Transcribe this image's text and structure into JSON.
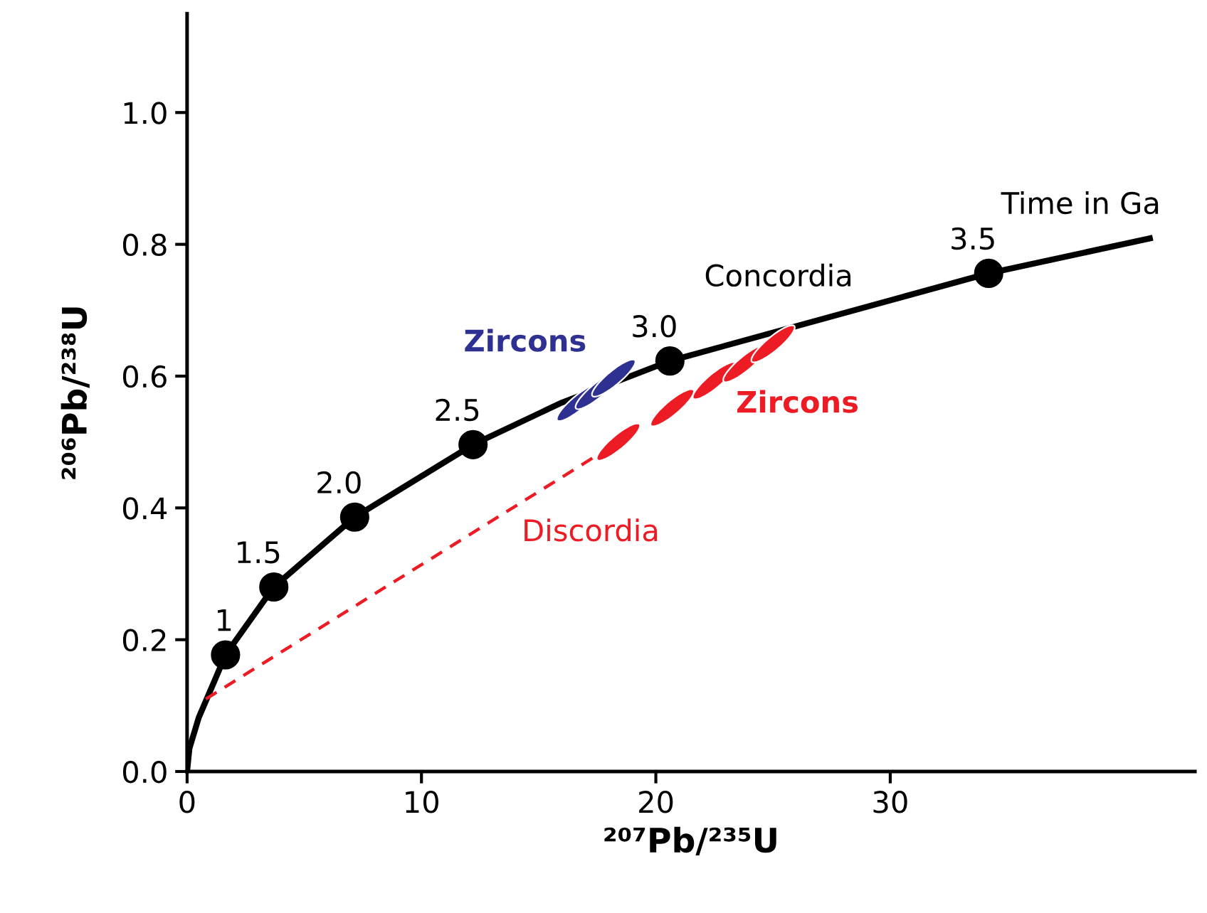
{
  "chart_data": {
    "type": "line",
    "xlabel": "²⁰⁷Pb/²³⁵U",
    "ylabel": "²⁰⁶Pb/²³⁸U",
    "xlim": [
      0,
      43
    ],
    "ylim": [
      0,
      1.15
    ],
    "xticks": [
      0,
      10,
      20,
      30
    ],
    "yticks": [
      {
        "value": 0,
        "label": "0.0"
      },
      {
        "value": 0.2,
        "label": "0.2"
      },
      {
        "value": 0.4,
        "label": "0.4"
      },
      {
        "value": 0.6,
        "label": "0.6"
      },
      {
        "value": 0.8,
        "label": "0.8"
      },
      {
        "value": 1.0,
        "label": "1.0"
      }
    ],
    "grid": false,
    "legend": false,
    "series": [
      {
        "name": "Concordia",
        "color": "#000000",
        "line_style": "solid",
        "x": [
          0,
          0.1,
          0.5,
          1.2,
          1.64,
          3.7,
          7.15,
          12.2,
          16,
          20.6,
          25.6,
          30.1,
          34.2,
          41.2
        ],
        "values": [
          0,
          0.035,
          0.082,
          0.14,
          0.177,
          0.28,
          0.386,
          0.496,
          0.56,
          0.623,
          0.672,
          0.716,
          0.756,
          0.81
        ]
      },
      {
        "name": "Discordia",
        "color": "#ed1c24",
        "line_style": "dashed",
        "x": [
          0.8,
          18.4
        ],
        "values": [
          0.11,
          0.5
        ]
      },
      {
        "name": "Zircons",
        "type": "scatter",
        "color": "#ed1c24",
        "x": [
          18.4,
          20.7,
          22.5,
          23.8,
          25.0
        ],
        "values": [
          0.5,
          0.552,
          0.593,
          0.619,
          0.649
        ]
      },
      {
        "name": "Zircons",
        "type": "scatter",
        "color": "#2e3192",
        "x": [
          16.7,
          17.5,
          18.2
        ],
        "values": [
          0.56,
          0.578,
          0.597
        ]
      },
      {
        "type": "scatter",
        "color": "#000000",
        "marker": "circle",
        "x": [
          1.64,
          3.7,
          7.15,
          12.2,
          20.6,
          34.2
        ],
        "values": [
          0.177,
          0.28,
          0.386,
          0.496,
          0.623,
          0.756
        ]
      }
    ],
    "annotations": [
      {
        "text": "1",
        "x": 1.64,
        "y": 0.177
      },
      {
        "text": "1.5",
        "x": 3.7,
        "y": 0.28
      },
      {
        "text": "2.0",
        "x": 7.15,
        "y": 0.386
      },
      {
        "text": "2.5",
        "x": 12.2,
        "y": 0.496
      },
      {
        "text": "3.0",
        "x": 20.6,
        "y": 0.623
      },
      {
        "text": "3.5",
        "x": 34.2,
        "y": 0.756
      },
      {
        "text": "Time in Ga",
        "x": 41.2,
        "y": 0.81
      }
    ]
  }
}
